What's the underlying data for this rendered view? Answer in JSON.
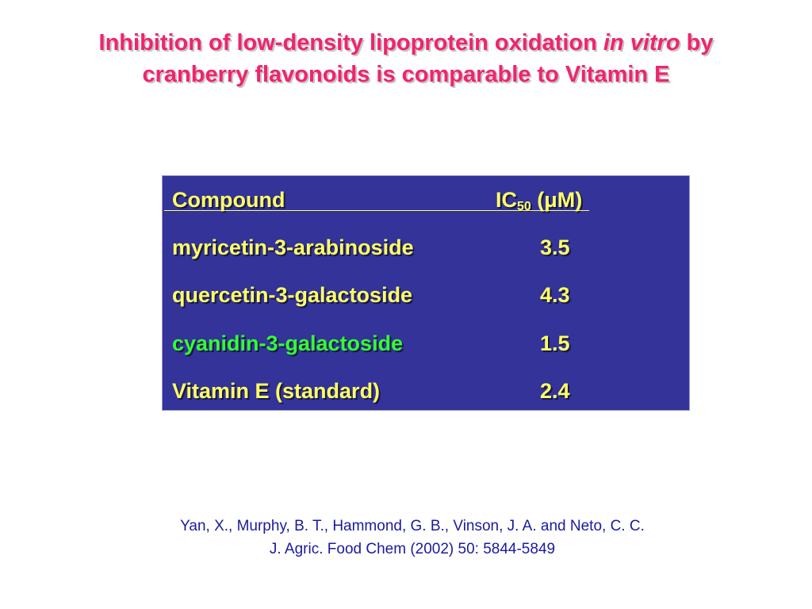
{
  "title": {
    "line1_pre": "Inhibition of low-density lipoprotein oxidation ",
    "line1_em": "in vitro",
    "line1_post": " by",
    "line2": "cranberry flavonoids is comparable to Vitamin E"
  },
  "table": {
    "header": {
      "compound": "Compound",
      "ic_pre": "IC",
      "ic_sub": "50",
      "ic_post": " (μM)"
    },
    "rows": [
      {
        "compound": "myricetin-3-arabinoside",
        "value": "3.5"
      },
      {
        "compound": "quercetin-3-galactoside",
        "value": "4.3"
      },
      {
        "compound": "cyanidin-3-galactoside",
        "value": "1.5"
      },
      {
        "compound": "Vitamin E (standard)",
        "value": "2.4"
      }
    ]
  },
  "citation": {
    "line1": "Yan, X., Murphy, B. T., Hammond, G. B., Vinson, J. A. and Neto, C. C.",
    "line2": "J. Agric. Food Chem (2002)  50: 5844-5849"
  },
  "colors": {
    "title": "#f0246e",
    "table_bg": "#333399",
    "table_text": "#ffff66",
    "highlight": "#33ff33",
    "citation": "#1a1aa0"
  }
}
